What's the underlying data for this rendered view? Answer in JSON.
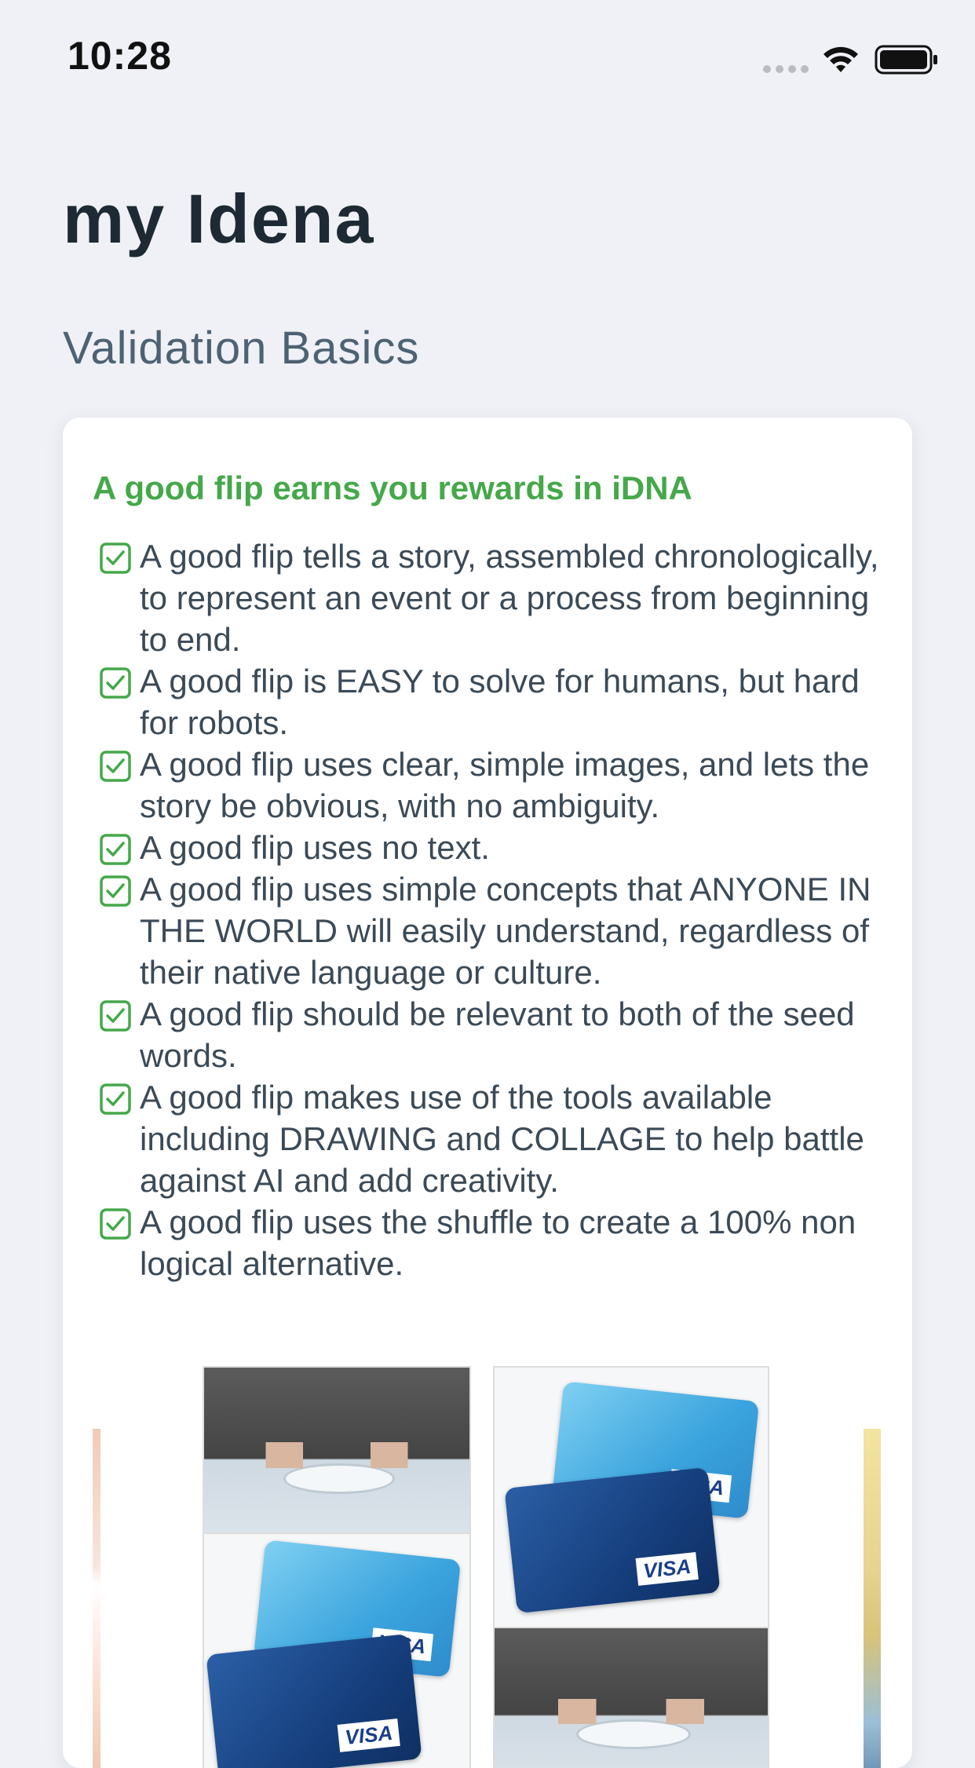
{
  "status_bar": {
    "time": "10:28",
    "icons": [
      "signal-icon",
      "wifi-icon",
      "battery-icon"
    ]
  },
  "header": {
    "title": "my Idena",
    "section": "Validation Basics"
  },
  "card": {
    "heading": "A good flip earns you rewards in iDNA",
    "rules": [
      "A good flip tells a story, assembled chronologically, to represent an event or a process from beginning to end.",
      "A good flip is EASY to solve for humans, but hard for robots.",
      "A good flip uses clear, simple images, and lets the story be obvious, with no ambiguity.",
      "A good flip uses no text.",
      "A good flip uses simple concepts that ANYONE IN THE WORLD will easily understand, regardless of their native language or culture.",
      "A good flip should be relevant to both of the seed words.",
      "A good flip makes use of the tools available including DRAWING and COLLAGE to help battle against AI and add creativity.",
      "A good flip uses the shuffle to create a 100% non logical alternative."
    ],
    "images": {
      "card_brand": "VISA"
    }
  },
  "colors": {
    "background": "#eff1f6",
    "accent_green": "#45a84a",
    "title": "#1d2a33",
    "section": "#4d6272",
    "body_text": "#3b4a57"
  }
}
